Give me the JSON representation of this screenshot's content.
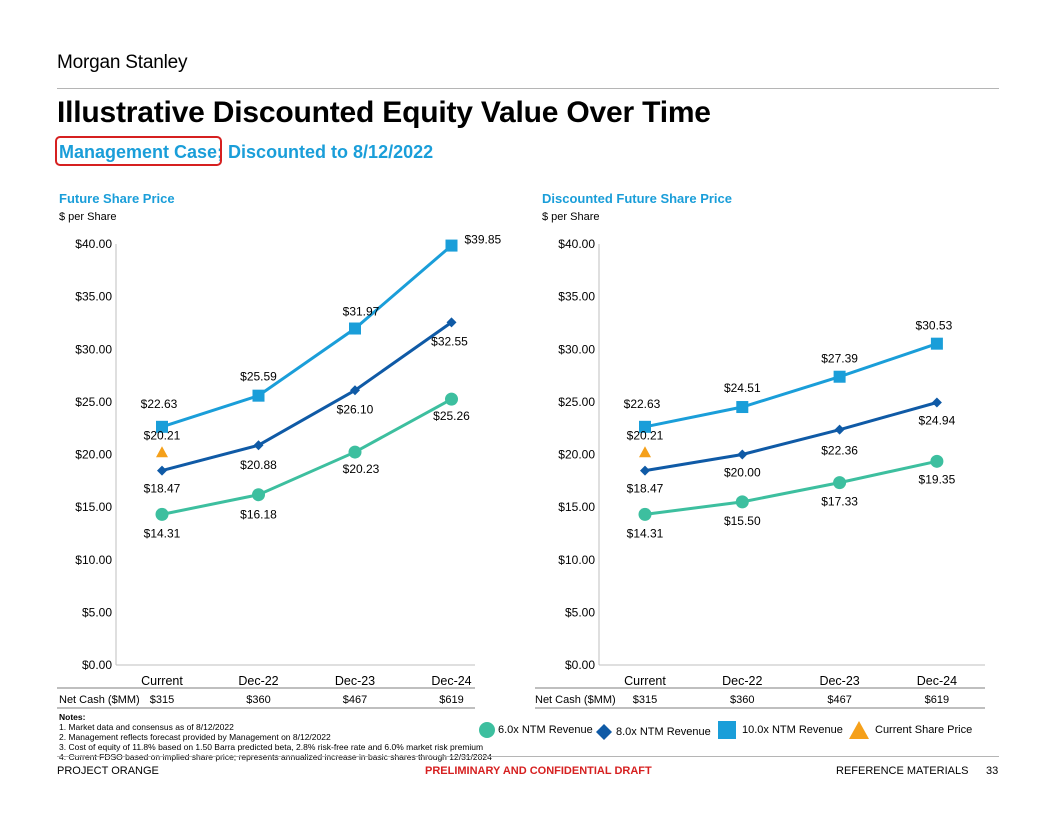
{
  "header": {
    "brand": "Morgan Stanley",
    "title": "Illustrative Discounted Equity Value Over Time",
    "subtitle": "Management Case; Discounted to 8/12/2022"
  },
  "colors": {
    "ntm6": "#3dbf9f",
    "ntm8": "#0f5aa6",
    "ntm10": "#1a9ed9",
    "current": "#f5a01a",
    "accent": "#1a9ed9",
    "alert": "#d62020"
  },
  "chart_data": [
    {
      "type": "line",
      "title": "Future Share Price",
      "ylabel": "$ per Share",
      "categories": [
        "Current",
        "Dec-22",
        "Dec-23",
        "Dec-24"
      ],
      "ylim": [
        0,
        40
      ],
      "ytick_labels": [
        "$0.00",
        "$5.00",
        "$10.00",
        "$15.00",
        "$20.00",
        "$25.00",
        "$30.00",
        "$35.00",
        "$40.00"
      ],
      "series": [
        {
          "name": "6.0x NTM Revenue",
          "values": [
            14.31,
            16.18,
            20.23,
            25.26
          ],
          "labels": [
            "$14.31",
            "$16.18",
            "$20.23",
            "$25.26"
          ]
        },
        {
          "name": "8.0x NTM Revenue",
          "values": [
            18.47,
            20.88,
            26.1,
            32.55
          ],
          "labels": [
            "$18.47",
            "$20.88",
            "$26.10",
            "$32.55"
          ]
        },
        {
          "name": "10.0x NTM Revenue",
          "values": [
            22.63,
            25.59,
            31.97,
            39.85
          ],
          "labels": [
            "$22.63",
            "$25.59",
            "$31.97",
            "$39.85"
          ]
        }
      ],
      "current_share_price": {
        "value": 20.21,
        "label": "$20.21"
      },
      "net_cash": {
        "label": "Net Cash ($MM)",
        "values": [
          "$315",
          "$360",
          "$467",
          "$619"
        ]
      }
    },
    {
      "type": "line",
      "title": "Discounted Future Share Price",
      "ylabel": "$ per Share",
      "categories": [
        "Current",
        "Dec-22",
        "Dec-23",
        "Dec-24"
      ],
      "ylim": [
        0,
        40
      ],
      "ytick_labels": [
        "$0.00",
        "$5.00",
        "$10.00",
        "$15.00",
        "$20.00",
        "$25.00",
        "$30.00",
        "$35.00",
        "$40.00"
      ],
      "series": [
        {
          "name": "6.0x NTM Revenue",
          "values": [
            14.31,
            15.5,
            17.33,
            19.35
          ],
          "labels": [
            "$14.31",
            "$15.50",
            "$17.33",
            "$19.35"
          ]
        },
        {
          "name": "8.0x NTM Revenue",
          "values": [
            18.47,
            20.0,
            22.36,
            24.94
          ],
          "labels": [
            "$18.47",
            "$20.00",
            "$22.36",
            "$24.94"
          ]
        },
        {
          "name": "10.0x NTM Revenue",
          "values": [
            22.63,
            24.51,
            27.39,
            30.53
          ],
          "labels": [
            "$22.63",
            "$24.51",
            "$27.39",
            "$30.53"
          ]
        }
      ],
      "current_share_price": {
        "value": 20.21,
        "label": "$20.21"
      },
      "net_cash": {
        "label": "Net Cash ($MM)",
        "values": [
          "$315",
          "$360",
          "$467",
          "$619"
        ]
      }
    }
  ],
  "legend": [
    {
      "key": "ntm6",
      "label": "6.0x NTM Revenue",
      "shape": "circle"
    },
    {
      "key": "ntm8",
      "label": "8.0x NTM Revenue",
      "shape": "diamond"
    },
    {
      "key": "ntm10",
      "label": "10.0x NTM Revenue",
      "shape": "square"
    },
    {
      "key": "current",
      "label": "Current Share Price",
      "shape": "triangle"
    }
  ],
  "notes": {
    "header": "Notes:",
    "items": [
      "1.  Market data and consensus as of 8/12/2022",
      "2.  Management reflects forecast provided by Management on 8/12/2022",
      "3.  Cost of equity of 11.8% based on 1.50 Barra predicted beta, 2.8% risk-free rate and 6.0% market risk premium",
      "4.  Current FDSO based on implied share price; represents annualized increase in basic shares through 12/31/2024"
    ]
  },
  "footer": {
    "left": "PROJECT ORANGE",
    "center": "PRELIMINARY AND CONFIDENTIAL DRAFT",
    "right": "REFERENCE MATERIALS",
    "page": "33"
  }
}
